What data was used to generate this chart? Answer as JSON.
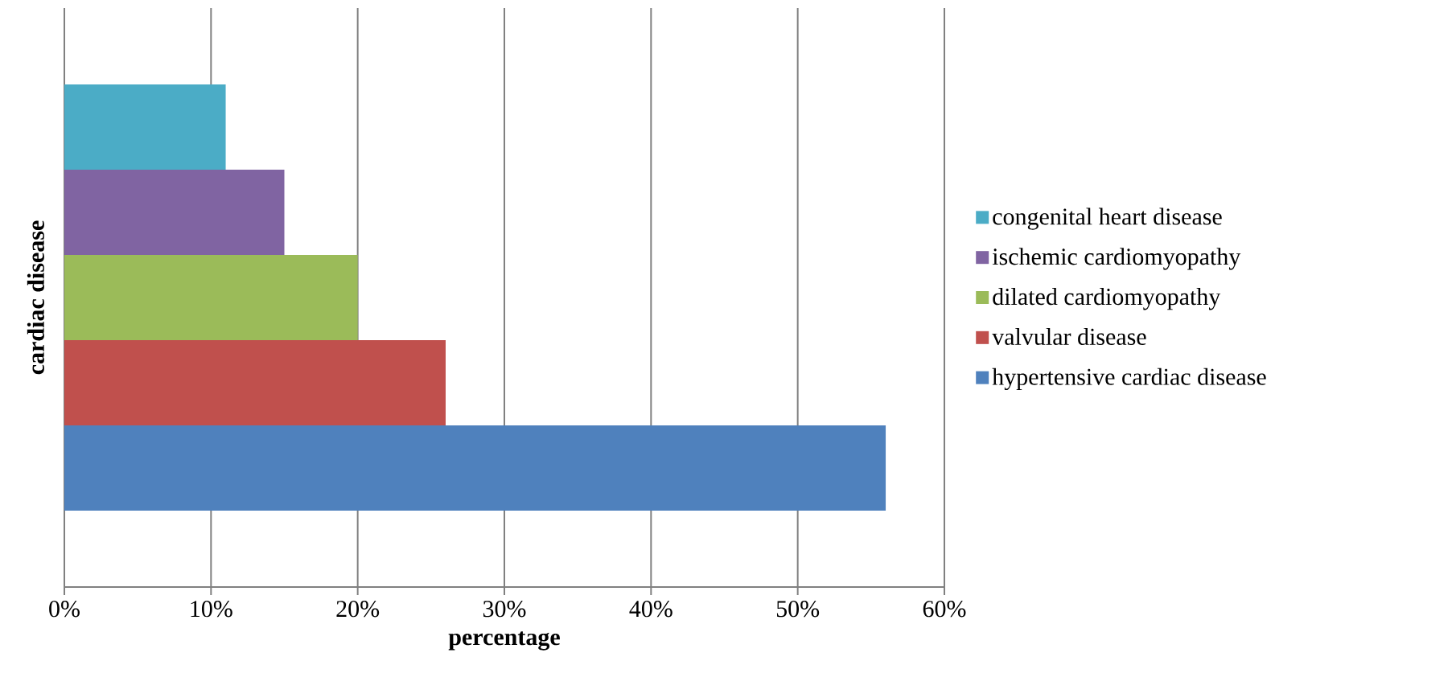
{
  "chart_data": {
    "type": "bar",
    "orientation": "horizontal",
    "xlabel": "percentage",
    "ylabel": "cardiac disease",
    "categories": [
      null
    ],
    "series": [
      {
        "name": "congenital heart disease",
        "color": "#4bacc6",
        "values": [
          11
        ]
      },
      {
        "name": "ischemic cardiomyopathy",
        "color": "#8064a2",
        "values": [
          15
        ]
      },
      {
        "name": "dilated cardiomyopathy",
        "color": "#9bbb59",
        "values": [
          20
        ]
      },
      {
        "name": "valvular disease",
        "color": "#c0504d",
        "values": [
          26
        ]
      },
      {
        "name": "hypertensive cardiac disease",
        "color": "#4f81bd",
        "values": [
          56
        ]
      }
    ],
    "xlim": [
      0,
      60
    ],
    "xticks": [
      {
        "value": 0,
        "label": "0%"
      },
      {
        "value": 10,
        "label": "10%"
      },
      {
        "value": 20,
        "label": "20%"
      },
      {
        "value": 30,
        "label": "30%"
      },
      {
        "value": 40,
        "label": "40%"
      },
      {
        "value": 50,
        "label": "50%"
      },
      {
        "value": 60,
        "label": "60%"
      }
    ],
    "grid": "x",
    "legend": "right"
  }
}
